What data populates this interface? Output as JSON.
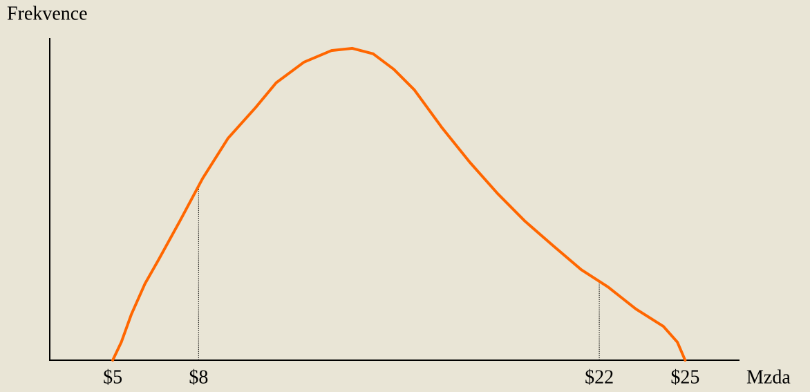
{
  "chart_data": {
    "type": "line",
    "x_label": "Mzda",
    "y_label": "Frekvence",
    "x": [
      5,
      5.3,
      5.65,
      6.13,
      6.61,
      7.34,
      8.14,
      9.03,
      10,
      10.71,
      11.68,
      12.64,
      13.37,
      14.1,
      14.82,
      15.54,
      16.51,
      17.48,
      18.45,
      19.41,
      20.38,
      21.37,
      22.31,
      23.28,
      24.24,
      24.73,
      25
    ],
    "values": [
      0,
      5.6,
      14.2,
      23.8,
      31.3,
      43.1,
      56.4,
      68.9,
      78.5,
      86.1,
      92.5,
      96.1,
      96.8,
      95.1,
      90.3,
      83.9,
      72.1,
      61.4,
      51.7,
      43.1,
      35.6,
      28.1,
      22.7,
      15.9,
      10.5,
      5.6,
      0
    ],
    "color": "#ff6600",
    "xlim": [
      2.8,
      26.9
    ],
    "ylim": [
      0,
      100
    ],
    "xticks": [
      {
        "value": 5,
        "label": "$5"
      },
      {
        "value": 8,
        "label": "$8"
      },
      {
        "value": 22,
        "label": "$22"
      },
      {
        "value": 25,
        "label": "$25"
      }
    ]
  }
}
